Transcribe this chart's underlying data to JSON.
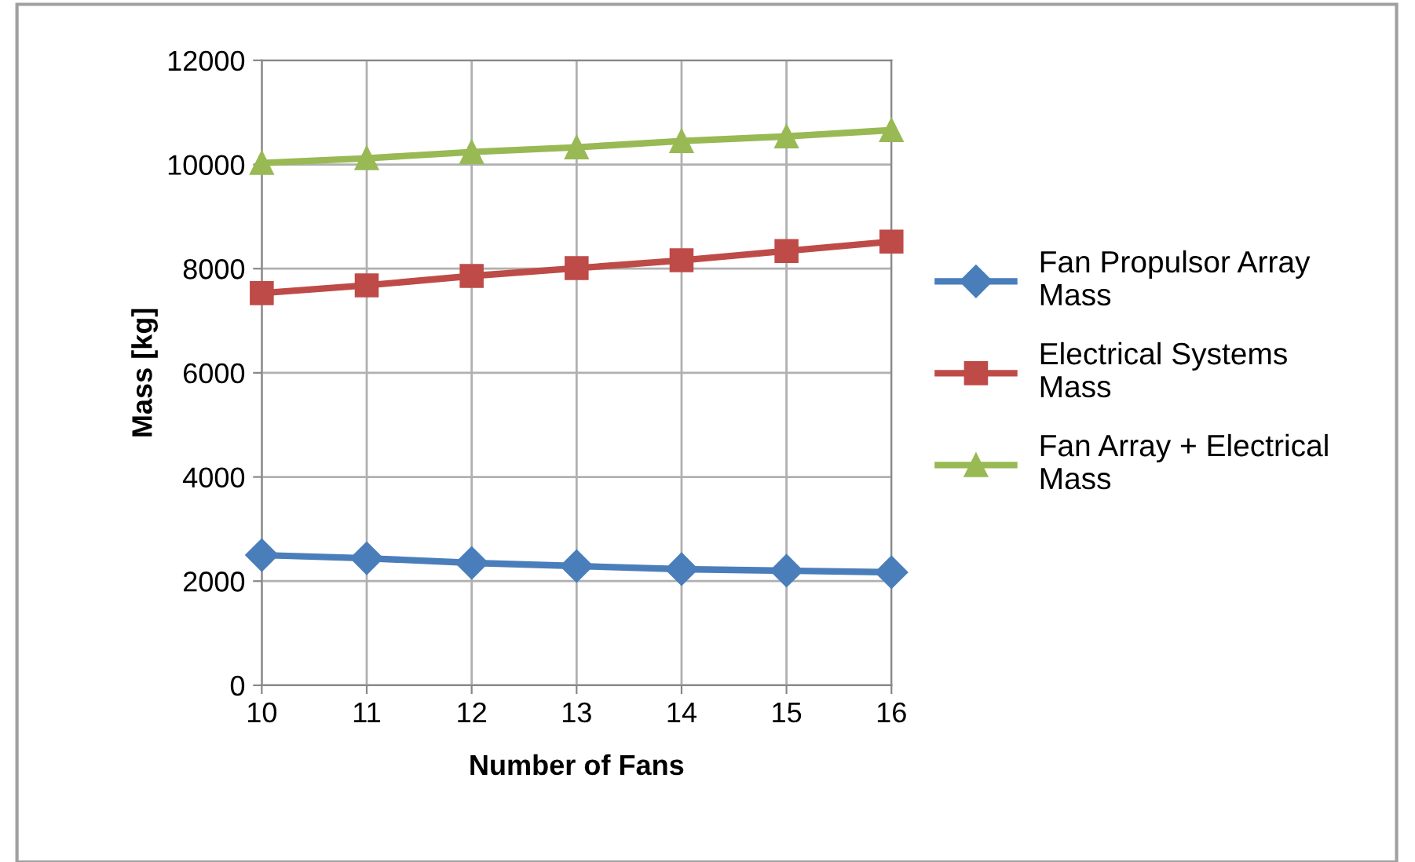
{
  "chart_data": {
    "type": "line",
    "xlabel": "Number of Fans",
    "ylabel": "Mass [kg]",
    "x": [
      10,
      11,
      12,
      13,
      14,
      15,
      16
    ],
    "xlim": [
      10,
      16
    ],
    "xticks": [
      10,
      11,
      12,
      13,
      14,
      15,
      16
    ],
    "ylim": [
      0,
      12000
    ],
    "yticks": [
      0,
      2000,
      4000,
      6000,
      8000,
      10000,
      12000
    ],
    "grid": true,
    "legend": "right",
    "series": [
      {
        "name": "Fan Propulsor Array\nMass",
        "color": "#4a7ebb",
        "marker": "diamond",
        "values": [
          2500,
          2440,
          2350,
          2290,
          2230,
          2200,
          2170
        ]
      },
      {
        "name": "Electrical Systems\nMass",
        "color": "#be4b48",
        "marker": "square",
        "values": [
          7530,
          7680,
          7860,
          8010,
          8160,
          8340,
          8520
        ]
      },
      {
        "name": "Fan Array + Electrical\nMass",
        "color": "#98b954",
        "marker": "triangle",
        "values": [
          10030,
          10120,
          10240,
          10330,
          10450,
          10540,
          10660
        ]
      }
    ]
  }
}
